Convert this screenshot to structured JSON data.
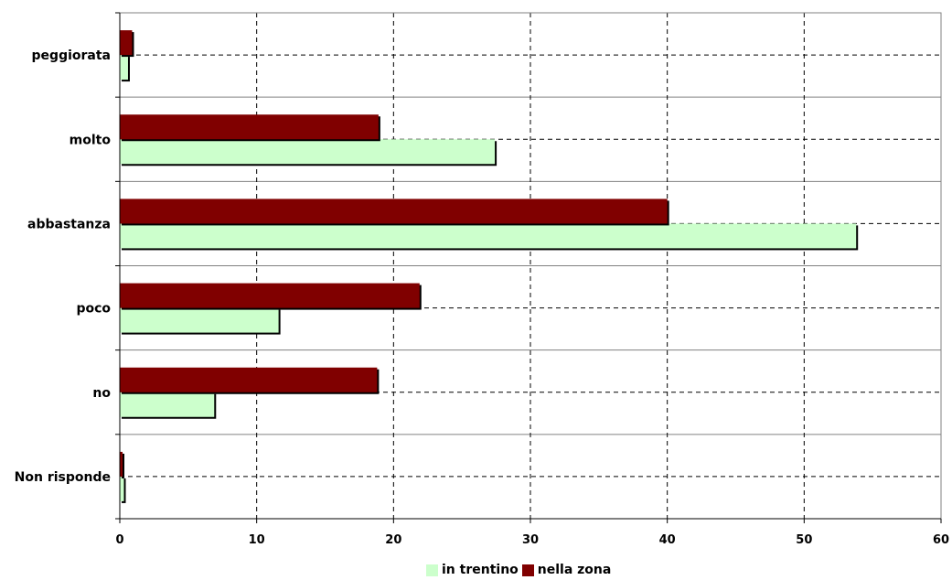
{
  "chart_data": {
    "type": "bar",
    "orientation": "horizontal",
    "categories": [
      "peggiorata",
      "molto",
      "abbastanza",
      "poco",
      "no",
      "Non risponde"
    ],
    "series": [
      {
        "name": "in trentino",
        "color": "#ccffcc",
        "values": [
          0.6,
          27.4,
          53.8,
          11.6,
          6.9,
          0.3
        ]
      },
      {
        "name": "nella zona",
        "color": "#800000",
        "values": [
          0.9,
          18.9,
          40.0,
          21.9,
          18.8,
          0.2
        ]
      }
    ],
    "xlim": [
      0,
      60
    ],
    "xticks": [
      0,
      10,
      20,
      30,
      40,
      50,
      60
    ],
    "grid": true,
    "legend_position": "bottom"
  }
}
